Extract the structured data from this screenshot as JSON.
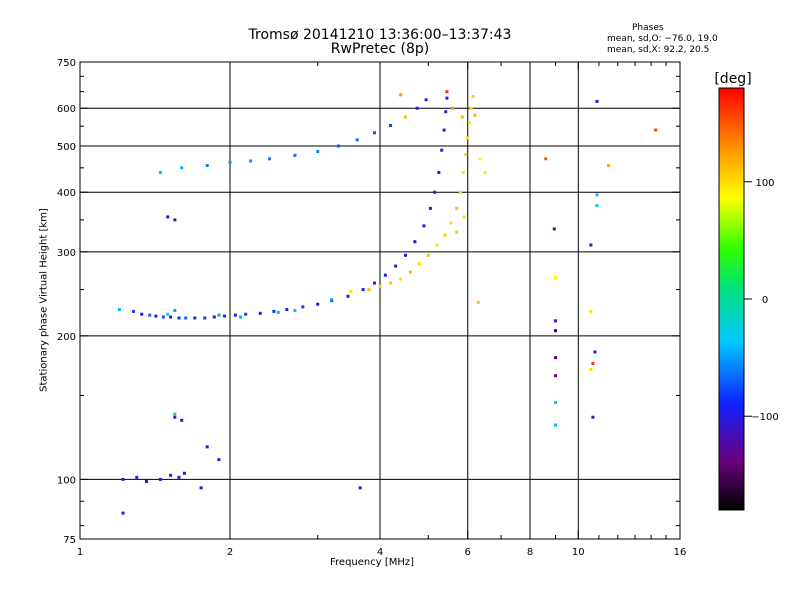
{
  "title": "Tromsø 20141210 13:36:00–13:37:43",
  "subtitle": "RwPretec (8p)",
  "phases": {
    "heading": "Phases",
    "line_o": "mean, sd,O: −76.0, 19.0",
    "line_x": "mean, sd,X: 92.2, 20.5"
  },
  "chart_data": {
    "type": "scatter",
    "title": "Tromsø 20141210 13:36:00–13:37:43",
    "subtitle": "RwPretec (8p)",
    "xlabel": "Frequency [MHz]",
    "ylabel": "Stationary phase Virtual Height [km]",
    "x_scale": "log",
    "y_scale": "log",
    "xlim": [
      1,
      16
    ],
    "ylim": [
      75,
      750
    ],
    "x_ticks": [
      1,
      2,
      4,
      6,
      8,
      10,
      16
    ],
    "y_ticks": [
      75,
      100,
      200,
      300,
      400,
      500,
      600,
      750
    ],
    "grid_x": [
      2,
      4,
      6,
      8,
      10
    ],
    "grid_y": [
      100,
      200,
      300,
      400,
      500,
      600
    ],
    "colorbar": {
      "label": "[deg]",
      "range": [
        -180,
        180
      ],
      "ticks": [
        100,
        0,
        -100
      ]
    },
    "series": [
      {
        "points": [
          [
            1.28,
            225,
            -80
          ],
          [
            1.33,
            222,
            -95
          ],
          [
            1.38,
            221,
            -70
          ],
          [
            1.42,
            220,
            -90
          ],
          [
            1.47,
            219,
            -75
          ],
          [
            1.52,
            219,
            -100
          ],
          [
            1.58,
            218,
            -85
          ],
          [
            1.63,
            218,
            -70
          ],
          [
            1.7,
            218,
            -95
          ],
          [
            1.78,
            218,
            -80
          ],
          [
            1.86,
            219,
            -100
          ],
          [
            1.95,
            220,
            -85
          ],
          [
            2.05,
            221,
            -95
          ],
          [
            2.15,
            222,
            -80
          ],
          [
            2.3,
            223,
            -100
          ],
          [
            2.45,
            225,
            -85
          ],
          [
            2.6,
            227,
            -95
          ],
          [
            2.8,
            230,
            -80
          ],
          [
            3.0,
            233,
            -100
          ],
          [
            3.2,
            237,
            -90
          ],
          [
            3.45,
            242,
            -100
          ],
          [
            3.7,
            250,
            -95
          ],
          [
            3.9,
            258,
            -105
          ],
          [
            4.1,
            268,
            -100
          ],
          [
            4.3,
            280,
            -110
          ],
          [
            4.5,
            295,
            -100
          ],
          [
            4.7,
            315,
            -110
          ],
          [
            4.9,
            340,
            -105
          ],
          [
            5.05,
            370,
            -115
          ],
          [
            5.15,
            400,
            -105
          ],
          [
            5.25,
            440,
            -110
          ],
          [
            5.32,
            490,
            -105
          ],
          [
            5.38,
            540,
            -110
          ],
          [
            5.42,
            590,
            -105
          ],
          [
            5.45,
            630,
            -110
          ],
          [
            1.22,
            100,
            -95
          ],
          [
            1.3,
            101,
            -100
          ],
          [
            1.36,
            99,
            -90
          ],
          [
            1.45,
            100,
            -105
          ],
          [
            1.52,
            102,
            -95
          ],
          [
            1.58,
            101,
            -100
          ],
          [
            1.62,
            103,
            -110
          ],
          [
            1.5,
            355,
            -105
          ],
          [
            1.55,
            350,
            -110
          ],
          [
            1.55,
            135,
            -100
          ],
          [
            1.6,
            133,
            -105
          ],
          [
            1.8,
            117,
            -100
          ],
          [
            1.9,
            110,
            -95
          ],
          [
            1.75,
            96,
            -120
          ],
          [
            1.22,
            85,
            -90
          ],
          [
            3.65,
            96,
            -110
          ],
          [
            9.0,
            205,
            -150
          ],
          [
            9.0,
            180,
            -140
          ],
          [
            9.0,
            165,
            -130
          ],
          [
            9.0,
            215,
            -110
          ],
          [
            10.7,
            135,
            -120
          ],
          [
            10.8,
            185,
            -95
          ],
          [
            10.9,
            620,
            -110
          ],
          [
            8.95,
            335,
            -130
          ],
          [
            10.6,
            310,
            -105
          ]
        ]
      },
      {
        "points": [
          [
            1.45,
            440,
            -40
          ],
          [
            1.6,
            450,
            -45
          ],
          [
            1.8,
            455,
            -60
          ],
          [
            2.0,
            462,
            -50
          ],
          [
            2.2,
            465,
            -55
          ],
          [
            2.4,
            470,
            -60
          ],
          [
            2.7,
            478,
            -65
          ],
          [
            3.0,
            487,
            -60
          ],
          [
            3.3,
            500,
            -70
          ],
          [
            3.6,
            515,
            -65
          ],
          [
            3.9,
            533,
            -75
          ],
          [
            4.2,
            552,
            -80
          ],
          [
            4.5,
            575,
            -90
          ],
          [
            4.75,
            600,
            -95
          ],
          [
            4.95,
            625,
            -100
          ],
          [
            1.2,
            227,
            -40
          ],
          [
            1.5,
            222,
            -35
          ],
          [
            1.9,
            221,
            -45
          ],
          [
            2.5,
            224,
            -40
          ],
          [
            3.2,
            238,
            -50
          ],
          [
            1.55,
            137,
            -20
          ],
          [
            9.0,
            145,
            -20
          ],
          [
            9.0,
            130,
            -40
          ],
          [
            10.9,
            395,
            -30
          ],
          [
            10.9,
            375,
            -25
          ],
          [
            1.55,
            226,
            -50
          ],
          [
            2.1,
            219,
            -45
          ],
          [
            2.7,
            226,
            -40
          ]
        ]
      },
      {
        "points": [
          [
            3.5,
            248,
            100
          ],
          [
            3.8,
            250,
            110
          ],
          [
            4.0,
            254,
            105
          ],
          [
            4.2,
            258,
            110
          ],
          [
            4.4,
            263,
            100
          ],
          [
            4.6,
            272,
            115
          ],
          [
            4.8,
            283,
            100
          ],
          [
            5.0,
            295,
            110
          ],
          [
            5.2,
            310,
            95
          ],
          [
            5.4,
            325,
            105
          ],
          [
            5.55,
            345,
            100
          ],
          [
            5.7,
            370,
            110
          ],
          [
            5.8,
            400,
            100
          ],
          [
            5.88,
            440,
            95
          ],
          [
            5.95,
            480,
            105
          ],
          [
            6.0,
            520,
            100
          ],
          [
            6.05,
            560,
            95
          ],
          [
            6.1,
            600,
            100
          ],
          [
            6.15,
            635,
            105
          ],
          [
            6.2,
            580,
            120
          ],
          [
            6.35,
            470,
            85
          ],
          [
            6.5,
            440,
            75
          ],
          [
            5.85,
            575,
            115
          ],
          [
            5.6,
            600,
            125
          ],
          [
            4.4,
            640,
            130
          ],
          [
            4.5,
            575,
            110
          ],
          [
            6.3,
            235,
            110
          ],
          [
            9.0,
            265,
            90
          ],
          [
            10.6,
            225,
            95
          ],
          [
            10.6,
            170,
            100
          ],
          [
            11.5,
            455,
            120
          ],
          [
            5.7,
            330,
            65
          ],
          [
            5.9,
            355,
            75
          ]
        ]
      },
      {
        "points": [
          [
            8.6,
            470,
            150
          ],
          [
            14.3,
            540,
            160
          ],
          [
            5.45,
            650,
            165
          ],
          [
            10.7,
            175,
            160
          ]
        ]
      }
    ]
  }
}
